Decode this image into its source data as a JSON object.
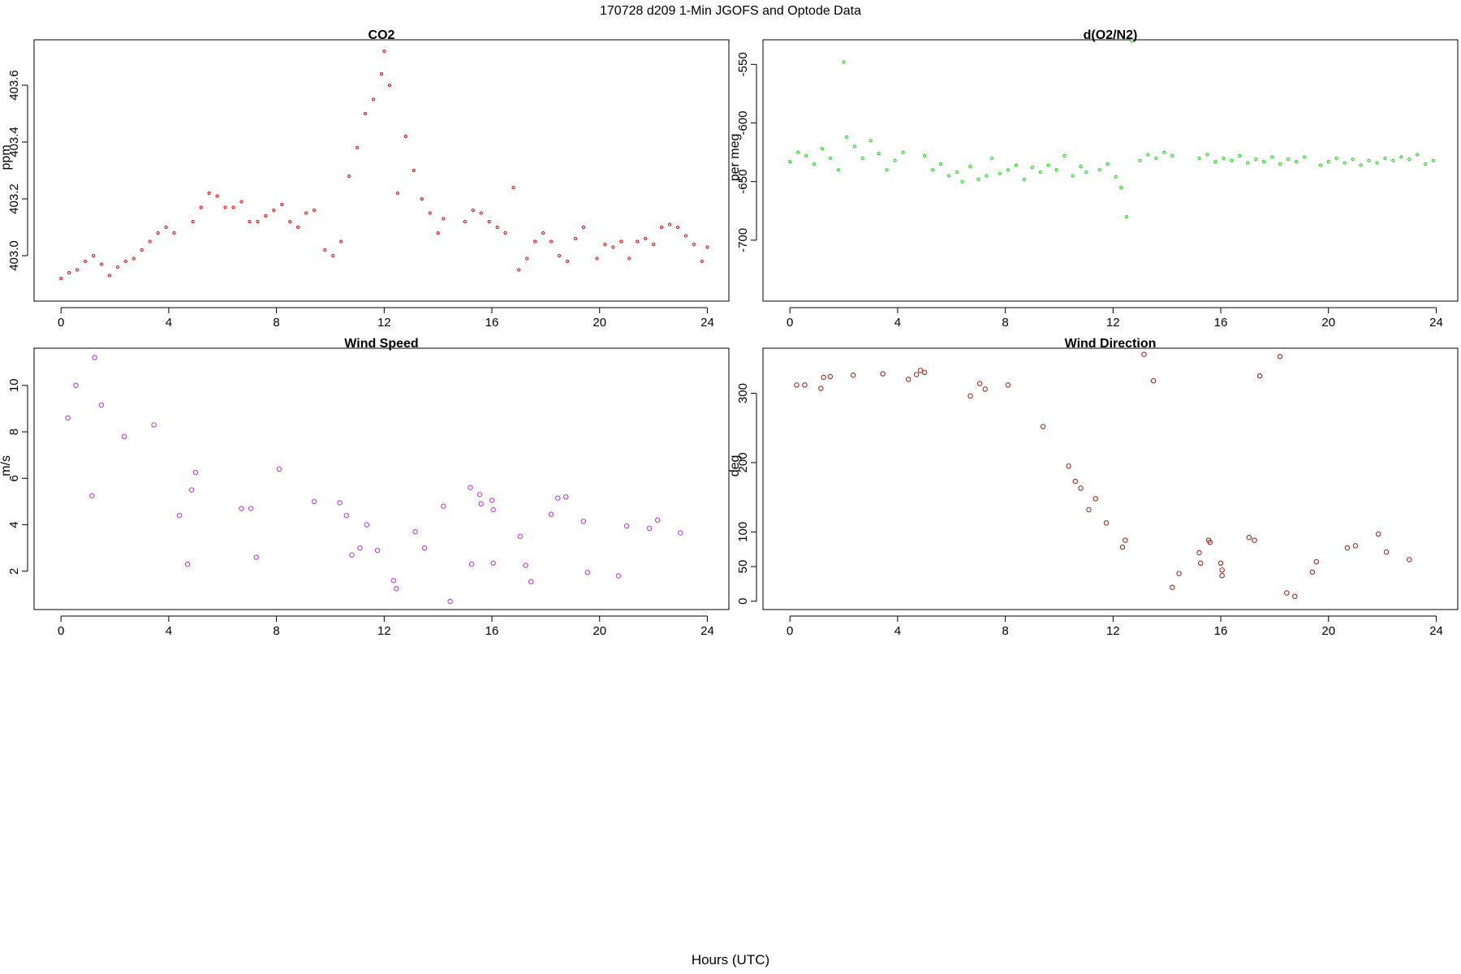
{
  "figure": {
    "title": "170728   d209   1-Min  JGOFS and Optode Data",
    "xlabel": "Hours (UTC)"
  },
  "chart_data": [
    {
      "id": "co2",
      "type": "scatter",
      "title": "CO2",
      "ylabel": "ppm",
      "xlim": [
        -1,
        24.8
      ],
      "ylim": [
        402.84,
        403.76
      ],
      "xticks": [
        0,
        4,
        8,
        12,
        16,
        20,
        24
      ],
      "yticks": [
        403.0,
        403.2,
        403.4,
        403.6
      ],
      "ytick_labels": [
        "403.0",
        "403.2",
        "403.4",
        "403.6"
      ],
      "color": "#e41a1c",
      "marker_radius": 1.6,
      "series": [
        {
          "x": [
            0.0,
            0.3,
            0.6,
            0.9,
            1.2,
            1.5,
            1.8,
            2.1,
            2.4,
            2.7,
            3.0,
            3.3,
            3.6,
            3.9,
            4.2,
            4.9,
            5.2,
            5.5,
            5.8,
            6.1,
            6.4,
            6.7,
            7.0,
            7.3,
            7.6,
            7.9,
            8.2,
            8.5,
            8.8,
            9.1,
            9.4,
            9.8,
            10.1,
            10.4,
            10.7,
            11.0,
            11.3,
            11.6,
            11.9,
            12.0,
            12.2,
            12.5,
            12.8,
            13.1,
            13.4,
            13.7,
            14.0,
            14.2,
            15.0,
            15.3,
            15.6,
            15.9,
            16.2,
            16.5,
            16.8,
            17.0,
            17.3,
            17.6,
            17.9,
            18.2,
            18.5,
            18.8,
            19.1,
            19.4,
            19.9,
            20.2,
            20.5,
            20.8,
            21.1,
            21.4,
            21.7,
            22.0,
            22.3,
            22.6,
            22.9,
            23.2,
            23.5,
            23.8,
            24.0
          ],
          "y": [
            402.92,
            402.94,
            402.95,
            402.98,
            403.0,
            402.97,
            402.93,
            402.96,
            402.98,
            402.99,
            403.02,
            403.05,
            403.08,
            403.1,
            403.08,
            403.12,
            403.17,
            403.22,
            403.21,
            403.17,
            403.17,
            403.19,
            403.12,
            403.12,
            403.14,
            403.16,
            403.18,
            403.12,
            403.1,
            403.15,
            403.16,
            403.02,
            403.0,
            403.05,
            403.28,
            403.38,
            403.5,
            403.55,
            403.64,
            403.72,
            403.6,
            403.22,
            403.42,
            403.3,
            403.2,
            403.15,
            403.08,
            403.13,
            403.12,
            403.16,
            403.15,
            403.12,
            403.1,
            403.08,
            403.24,
            402.95,
            402.99,
            403.05,
            403.08,
            403.05,
            403.0,
            402.98,
            403.06,
            403.1,
            402.99,
            403.04,
            403.03,
            403.05,
            402.99,
            403.05,
            403.06,
            403.04,
            403.1,
            403.11,
            403.1,
            403.07,
            403.04,
            402.98,
            403.03
          ]
        }
      ]
    },
    {
      "id": "o2n2",
      "type": "scatter",
      "title": "d(O2/N2)",
      "ylabel": "per meg",
      "xlim": [
        -1,
        24.8
      ],
      "ylim": [
        -752,
        -529
      ],
      "xticks": [
        0,
        4,
        8,
        12,
        16,
        20,
        24
      ],
      "yticks": [
        -550,
        -600,
        -650,
        -700
      ],
      "ytick_labels": [
        "-550",
        "-600",
        "-650",
        "-700"
      ],
      "color": "#22dd22",
      "marker_radius": 1.6,
      "series": [
        {
          "x": [
            0.0,
            0.3,
            0.6,
            0.9,
            1.2,
            1.5,
            1.8,
            2.0,
            2.1,
            2.4,
            2.7,
            3.0,
            3.3,
            3.6,
            3.9,
            4.2,
            5.0,
            5.3,
            5.6,
            5.9,
            6.2,
            6.4,
            6.7,
            7.0,
            7.3,
            7.5,
            7.8,
            8.1,
            8.4,
            8.7,
            9.0,
            9.3,
            9.6,
            9.9,
            10.2,
            10.5,
            10.8,
            11.0,
            11.5,
            11.8,
            12.1,
            12.3,
            12.5,
            12.7,
            13.0,
            13.3,
            13.6,
            13.9,
            14.2,
            15.2,
            15.5,
            15.8,
            16.1,
            16.4,
            16.7,
            17.0,
            17.3,
            17.6,
            17.9,
            18.2,
            18.5,
            18.8,
            19.1,
            19.7,
            20.0,
            20.3,
            20.6,
            20.9,
            21.2,
            21.5,
            21.8,
            22.1,
            22.4,
            22.7,
            23.0,
            23.3,
            23.6,
            23.9
          ],
          "y": [
            -633,
            -625,
            -628,
            -635,
            -622,
            -630,
            -640,
            -548,
            -612,
            -620,
            -630,
            -615,
            -626,
            -640,
            -632,
            -625,
            -628,
            -640,
            -635,
            -645,
            -642,
            -650,
            -637,
            -648,
            -645,
            -630,
            -643,
            -640,
            -636,
            -648,
            -638,
            -642,
            -636,
            -640,
            -628,
            -645,
            -637,
            -642,
            -640,
            -635,
            -646,
            -655,
            -680,
            -530,
            -632,
            -627,
            -630,
            -625,
            -628,
            -630,
            -627,
            -633,
            -630,
            -632,
            -628,
            -634,
            -631,
            -633,
            -629,
            -635,
            -631,
            -633,
            -629,
            -636,
            -633,
            -630,
            -634,
            -631,
            -636,
            -632,
            -634,
            -630,
            -632,
            -629,
            -631,
            -627,
            -635,
            -632
          ]
        }
      ]
    },
    {
      "id": "wspd",
      "type": "scatter",
      "title": "Wind Speed",
      "ylabel": "m/s",
      "xlim": [
        -1,
        24.8
      ],
      "ylim": [
        0.35,
        11.6
      ],
      "xticks": [
        0,
        4,
        8,
        12,
        16,
        20,
        24
      ],
      "yticks": [
        2,
        4,
        6,
        8,
        10
      ],
      "ytick_labels": [
        "2",
        "4",
        "6",
        "8",
        "10"
      ],
      "color": "#c040e0",
      "marker_radius": 2.7,
      "series": [
        {
          "x": [
            0.25,
            0.55,
            1.15,
            1.25,
            1.5,
            2.35,
            3.45,
            4.4,
            4.7,
            4.85,
            5.0,
            6.7,
            7.05,
            7.25,
            8.1,
            9.4,
            10.35,
            10.6,
            10.8,
            11.1,
            11.35,
            11.75,
            12.35,
            12.45,
            13.15,
            13.5,
            14.2,
            14.45,
            15.2,
            15.25,
            15.55,
            15.6,
            16.0,
            16.05,
            16.05,
            17.05,
            17.25,
            17.45,
            18.2,
            18.45,
            18.75,
            19.4,
            19.55,
            20.7,
            21.0,
            21.85,
            22.15,
            23.0
          ],
          "y": [
            8.6,
            10.0,
            5.25,
            11.2,
            9.15,
            7.8,
            8.3,
            4.4,
            2.3,
            5.5,
            6.25,
            4.7,
            4.7,
            2.6,
            6.4,
            5.0,
            4.95,
            4.4,
            2.7,
            3.0,
            4.0,
            2.9,
            1.6,
            1.25,
            3.7,
            3.0,
            4.8,
            0.7,
            5.6,
            2.3,
            5.3,
            4.9,
            5.05,
            4.65,
            2.35,
            3.5,
            2.25,
            1.55,
            4.45,
            5.15,
            5.2,
            4.15,
            1.95,
            1.8,
            3.95,
            3.85,
            4.2,
            3.65
          ]
        }
      ]
    },
    {
      "id": "wdir",
      "type": "scatter",
      "title": "Wind Direction",
      "ylabel": "deg",
      "xlim": [
        -1,
        24.8
      ],
      "ylim": [
        -12,
        365
      ],
      "xticks": [
        0,
        4,
        8,
        12,
        16,
        20,
        24
      ],
      "yticks": [
        0,
        50,
        100,
        200,
        300
      ],
      "ytick_labels": [
        "0",
        "50",
        "100",
        "200",
        "300"
      ],
      "color": "#a03020",
      "marker_radius": 2.7,
      "series": [
        {
          "x": [
            0.25,
            0.55,
            1.15,
            1.25,
            1.5,
            2.35,
            3.45,
            4.4,
            4.7,
            4.85,
            5.0,
            6.7,
            7.05,
            7.25,
            8.1,
            9.4,
            10.35,
            10.6,
            10.8,
            11.1,
            11.35,
            11.75,
            12.35,
            12.45,
            13.15,
            13.5,
            14.2,
            14.45,
            15.2,
            15.25,
            15.55,
            15.6,
            16.0,
            16.05,
            16.05,
            17.05,
            17.25,
            17.45,
            18.2,
            18.45,
            18.75,
            19.4,
            19.55,
            20.7,
            21.0,
            21.85,
            22.15,
            23.0
          ],
          "y": [
            312,
            312,
            307,
            323,
            324,
            326,
            328,
            320,
            327,
            333,
            330,
            296,
            314,
            306,
            312,
            252,
            195,
            173,
            163,
            132,
            148,
            113,
            78,
            88,
            356,
            318,
            20,
            40,
            70,
            55,
            88,
            85,
            55,
            45,
            37,
            92,
            88,
            325,
            353,
            12,
            7,
            42,
            57,
            77,
            80,
            97,
            71,
            60
          ]
        }
      ]
    }
  ]
}
